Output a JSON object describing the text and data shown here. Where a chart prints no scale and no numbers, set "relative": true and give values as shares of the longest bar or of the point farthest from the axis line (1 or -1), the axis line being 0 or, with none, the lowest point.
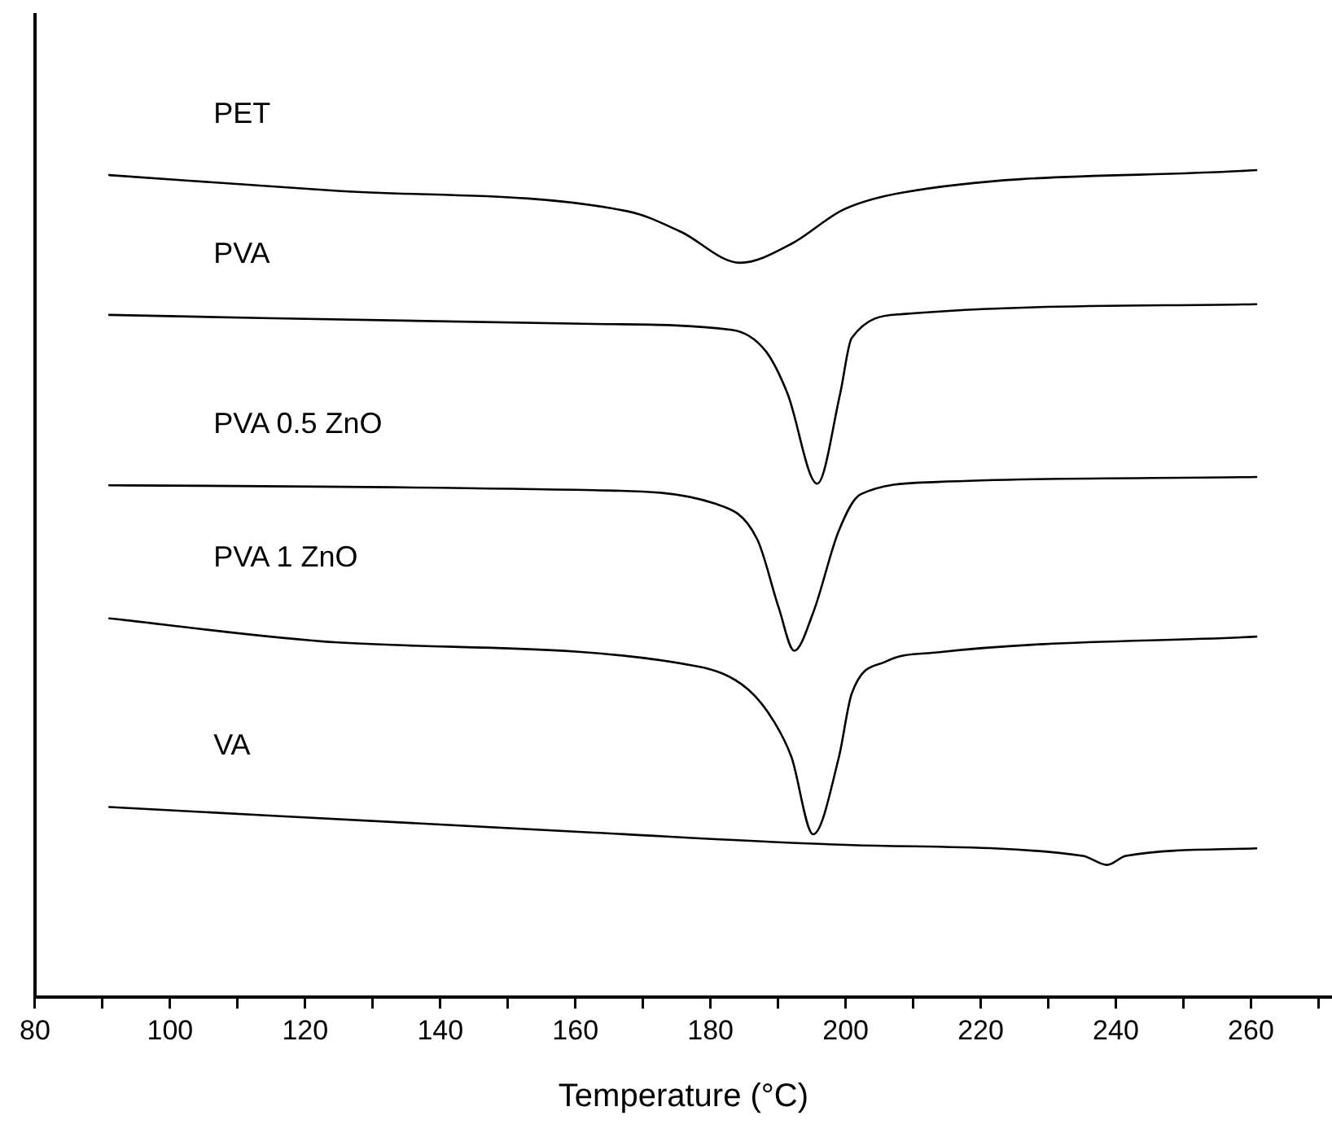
{
  "chart_data": {
    "type": "line",
    "xlabel": "Temperature (°C)",
    "relative": true,
    "xlim": [
      80,
      272
    ],
    "xticks": [
      80,
      {
        "value": 90,
        "label": null
      },
      100,
      {
        "value": 110,
        "label": null
      },
      120,
      {
        "value": 130,
        "label": null
      },
      140,
      {
        "value": 150,
        "label": null
      },
      160,
      {
        "value": 170,
        "label": null
      },
      180,
      {
        "value": 190,
        "label": null
      },
      200,
      {
        "value": 210,
        "label": null
      },
      220,
      {
        "value": 230,
        "label": null
      },
      240,
      {
        "value": 250,
        "label": null
      },
      260,
      {
        "value": 270,
        "label": null
      }
    ],
    "grid": false,
    "legend": false,
    "marker": "none",
    "line_style": "solid",
    "series": [
      {
        "name": "PET",
        "color": "#000000",
        "x": [
          91,
          124.8,
          167.9,
          175.5,
          184.4,
          192,
          199.6,
          208.5,
          260.8
        ],
        "values": [
          0.994,
          0.975,
          0.95,
          0.926,
          0.888,
          0.911,
          0.952,
          0.973,
          1
        ]
      },
      {
        "name": "PVA",
        "color": "#000000",
        "x": [
          91,
          162.8,
          183.1,
          188.2,
          191.4,
          195.8,
          199.2,
          200.9,
          208.5,
          260.8
        ],
        "values": [
          0.825,
          0.814,
          0.807,
          0.781,
          0.73,
          0.621,
          0.73,
          0.797,
          0.826,
          0.838
        ]
      },
      {
        "name": "PVA 0.5 ZnO",
        "color": "#000000",
        "x": [
          91,
          162.8,
          180.6,
          186.9,
          190.1,
          192.4,
          195.2,
          199,
          202.2,
          213.6,
          260.8
        ],
        "values": [
          0.619,
          0.613,
          0.597,
          0.554,
          0.471,
          0.419,
          0.465,
          0.564,
          0.608,
          0.623,
          0.629
        ]
      },
      {
        "name": "PVA 1 ZnO",
        "color": "#000000",
        "x": [
          91,
          124.8,
          178.1,
          185.6,
          189.5,
          192,
          195.2,
          199,
          200.9,
          206,
          213.6,
          260.8
        ],
        "values": [
          0.458,
          0.429,
          0.4,
          0.372,
          0.332,
          0.29,
          0.197,
          0.29,
          0.367,
          0.406,
          0.417,
          0.436
        ]
      },
      {
        "name": "VA",
        "color": "#000000",
        "x": [
          91,
          162.8,
          200.9,
          235.1,
          238.7,
          241.5,
          260.8
        ],
        "values": [
          0.23,
          0.199,
          0.184,
          0.171,
          0.16,
          0.171,
          0.18
        ]
      }
    ]
  }
}
